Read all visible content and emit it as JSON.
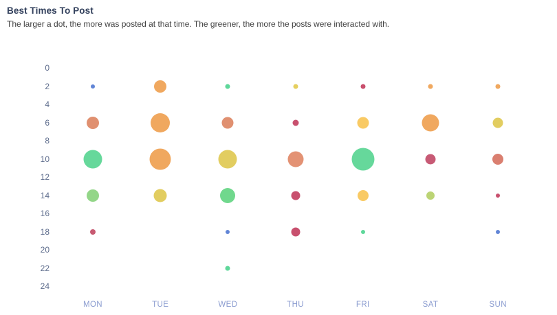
{
  "header": {
    "title": "Best Times To Post",
    "subtitle": "The larger a dot, the more was posted at that time. The greener, the more the posts were interacted with."
  },
  "axis": {
    "tick_color": "#5d6c8c",
    "day_label_color": "#8b9cd0"
  },
  "chart_data": {
    "type": "scatter",
    "subtype": "bubble",
    "title": "Best Times To Post",
    "x_categories": [
      "MON",
      "TUE",
      "WED",
      "THU",
      "FRI",
      "SAT",
      "SUN"
    ],
    "y_ticks": [
      0,
      2,
      4,
      6,
      8,
      10,
      12,
      14,
      16,
      18,
      20,
      22,
      24
    ],
    "ylim": [
      0,
      24
    ],
    "grid": false,
    "legend": "none",
    "size_meaning": "amount posted at that time",
    "color_meaning": "greener = more interaction",
    "points": [
      {
        "day": "MON",
        "hour": 2,
        "size": 6,
        "color": "#6185d6"
      },
      {
        "day": "MON",
        "hour": 6,
        "size": 18,
        "color": "#e09070"
      },
      {
        "day": "MON",
        "hour": 10,
        "size": 27,
        "color": "#66d89b"
      },
      {
        "day": "MON",
        "hour": 14,
        "size": 18,
        "color": "#93d688"
      },
      {
        "day": "MON",
        "hour": 18,
        "size": 8,
        "color": "#c75a72"
      },
      {
        "day": "TUE",
        "hour": 2,
        "size": 18,
        "color": "#f0a85f"
      },
      {
        "day": "TUE",
        "hour": 6,
        "size": 28,
        "color": "#f0a85f"
      },
      {
        "day": "TUE",
        "hour": 10,
        "size": 31,
        "color": "#f0a85f"
      },
      {
        "day": "TUE",
        "hour": 14,
        "size": 19,
        "color": "#e2cd60"
      },
      {
        "day": "WED",
        "hour": 2,
        "size": 7,
        "color": "#5ed79a"
      },
      {
        "day": "WED",
        "hour": 6,
        "size": 17,
        "color": "#e09070"
      },
      {
        "day": "WED",
        "hour": 10,
        "size": 27,
        "color": "#e2cd60"
      },
      {
        "day": "WED",
        "hour": 14,
        "size": 22,
        "color": "#70d88d"
      },
      {
        "day": "WED",
        "hour": 18,
        "size": 6,
        "color": "#6185d6"
      },
      {
        "day": "WED",
        "hour": 22,
        "size": 7,
        "color": "#5ed79a"
      },
      {
        "day": "THU",
        "hour": 2,
        "size": 7,
        "color": "#e5cf5e"
      },
      {
        "day": "THU",
        "hour": 6,
        "size": 9,
        "color": "#c8506e"
      },
      {
        "day": "THU",
        "hour": 10,
        "size": 23,
        "color": "#e39274"
      },
      {
        "day": "THU",
        "hour": 14,
        "size": 13,
        "color": "#c8506e"
      },
      {
        "day": "THU",
        "hour": 18,
        "size": 13,
        "color": "#c8506e"
      },
      {
        "day": "FRI",
        "hour": 2,
        "size": 7,
        "color": "#c94f6d"
      },
      {
        "day": "FRI",
        "hour": 6,
        "size": 17,
        "color": "#f9ca64"
      },
      {
        "day": "FRI",
        "hour": 10,
        "size": 33,
        "color": "#66d89b"
      },
      {
        "day": "FRI",
        "hour": 14,
        "size": 16,
        "color": "#f9ca64"
      },
      {
        "day": "FRI",
        "hour": 18,
        "size": 6,
        "color": "#5ed79a"
      },
      {
        "day": "SAT",
        "hour": 2,
        "size": 7,
        "color": "#f0a85f"
      },
      {
        "day": "SAT",
        "hour": 6,
        "size": 25,
        "color": "#f0a85f"
      },
      {
        "day": "SAT",
        "hour": 10,
        "size": 15,
        "color": "#c75a75"
      },
      {
        "day": "SAT",
        "hour": 14,
        "size": 12,
        "color": "#bcd475"
      },
      {
        "day": "SUN",
        "hour": 2,
        "size": 7,
        "color": "#f0a85f"
      },
      {
        "day": "SUN",
        "hour": 6,
        "size": 15,
        "color": "#e2cd60"
      },
      {
        "day": "SUN",
        "hour": 10,
        "size": 16,
        "color": "#da7f70"
      },
      {
        "day": "SUN",
        "hour": 14,
        "size": 6,
        "color": "#c8506e"
      },
      {
        "day": "SUN",
        "hour": 18,
        "size": 6,
        "color": "#6185d6"
      }
    ]
  }
}
